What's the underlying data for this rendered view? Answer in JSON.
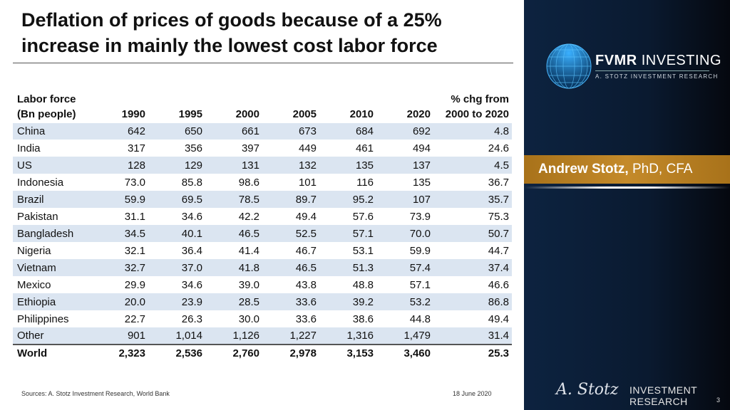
{
  "title": "Deflation of prices of goods because of a 25% increase in mainly the lowest cost labor force",
  "table": {
    "header_row1": [
      "Labor force",
      "",
      "",
      "",
      "",
      "",
      "",
      "% chg from"
    ],
    "header_row2": [
      "(Bn people)",
      "1990",
      "1995",
      "2000",
      "2005",
      "2010",
      "2020",
      "2000 to 2020"
    ],
    "rows": [
      [
        "China",
        "642",
        "650",
        "661",
        "673",
        "684",
        "692",
        "4.8"
      ],
      [
        "India",
        "317",
        "356",
        "397",
        "449",
        "461",
        "494",
        "24.6"
      ],
      [
        "US",
        "128",
        "129",
        "131",
        "132",
        "135",
        "137",
        "4.5"
      ],
      [
        "Indonesia",
        "73.0",
        "85.8",
        "98.6",
        "101",
        "116",
        "135",
        "36.7"
      ],
      [
        "Brazil",
        "59.9",
        "69.5",
        "78.5",
        "89.7",
        "95.2",
        "107",
        "35.7"
      ],
      [
        "Pakistan",
        "31.1",
        "34.6",
        "42.2",
        "49.4",
        "57.6",
        "73.9",
        "75.3"
      ],
      [
        "Bangladesh",
        "34.5",
        "40.1",
        "46.5",
        "52.5",
        "57.1",
        "70.0",
        "50.7"
      ],
      [
        "Nigeria",
        "32.1",
        "36.4",
        "41.4",
        "46.7",
        "53.1",
        "59.9",
        "44.7"
      ],
      [
        "Vietnam",
        "32.7",
        "37.0",
        "41.8",
        "46.5",
        "51.3",
        "57.4",
        "37.4"
      ],
      [
        "Mexico",
        "29.9",
        "34.6",
        "39.0",
        "43.8",
        "48.8",
        "57.1",
        "46.6"
      ],
      [
        "Ethiopia",
        "20.0",
        "23.9",
        "28.5",
        "33.6",
        "39.2",
        "53.2",
        "86.8"
      ],
      [
        "Philippines",
        "22.7",
        "26.3",
        "30.0",
        "33.6",
        "38.6",
        "44.8",
        "49.4"
      ],
      [
        "Other",
        "901",
        "1,014",
        "1,126",
        "1,227",
        "1,316",
        "1,479",
        "31.4"
      ]
    ],
    "total": [
      "World",
      "2,323",
      "2,536",
      "2,760",
      "2,978",
      "3,153",
      "3,460",
      "25.3"
    ]
  },
  "footer": {
    "sources": "Sources: A. Stotz Investment Research, World Bank",
    "date": "18 June 2020",
    "page": "3"
  },
  "panel": {
    "brand_bold": "FVMR",
    "brand_rest": " INVESTING",
    "brand_sub": "A. STOTZ INVESTMENT RESEARCH",
    "name": "Andrew Stotz,",
    "credentials": " PhD, CFA",
    "signature": "A. Stotz",
    "ir_line1": "INVESTMENT",
    "ir_line2": "RESEARCH"
  },
  "colors": {
    "row_shade": "#dbe5f1",
    "panel_bg": "#0d2340",
    "name_bar": "#b57d22"
  }
}
